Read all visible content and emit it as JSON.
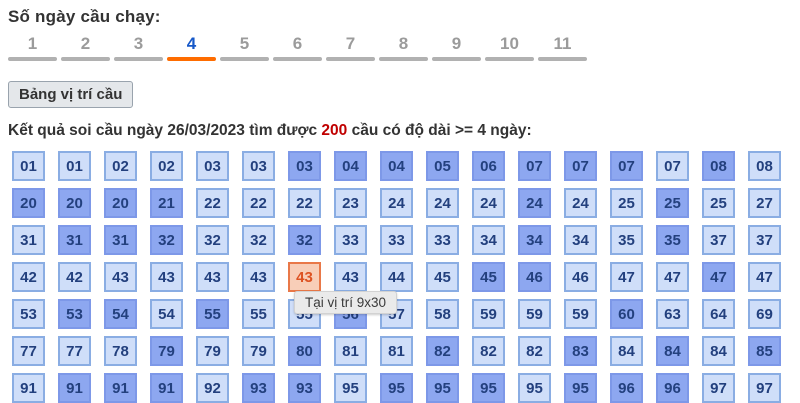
{
  "header": {
    "title": "Số ngày cầu chạy:"
  },
  "tabs": {
    "items": [
      "1",
      "2",
      "3",
      "4",
      "5",
      "6",
      "7",
      "8",
      "9",
      "10",
      "11"
    ],
    "active": "4"
  },
  "button": {
    "label": "Bảng vị trí cầu"
  },
  "result_line": {
    "prefix": "Kết quả soi cầu ngày 26/03/2023 tìm được ",
    "count": "200",
    "suffix": " cầu có độ dài >= 4 ngày:"
  },
  "tooltip": {
    "text": "Tại vị trí 9x30"
  },
  "colors": {
    "light_bg": "#cfdef9",
    "light_border": "#8aade3",
    "dark_bg": "#8da7f0",
    "dark_border": "#7d98e8",
    "cell_text": "#23407e",
    "hl_bg": "#f8ceb8",
    "hl_border": "#e97848",
    "hl_text": "#dd5222",
    "tab_gray": "#9b9b9b",
    "tab_bar": "#b1b1b1",
    "tab_active": "#1658c8",
    "tab_bar_active": "#fe6c00",
    "count_red": "#c00000",
    "ink": "#333333",
    "btn_bg": "#e4e7ea",
    "btn_border": "#99a3ad",
    "tip_bg": "#eaeaea",
    "tip_text": "#3a3a3a",
    "tip_border": "#d2d2d2"
  },
  "grid": {
    "rows": [
      [
        {
          "v": "01",
          "s": "l"
        },
        {
          "v": "01",
          "s": "l"
        },
        {
          "v": "02",
          "s": "l"
        },
        {
          "v": "02",
          "s": "l"
        },
        {
          "v": "03",
          "s": "l"
        },
        {
          "v": "03",
          "s": "l"
        },
        {
          "v": "03",
          "s": "d"
        },
        {
          "v": "04",
          "s": "d"
        },
        {
          "v": "04",
          "s": "d"
        },
        {
          "v": "05",
          "s": "d"
        },
        {
          "v": "06",
          "s": "d"
        },
        {
          "v": "07",
          "s": "d"
        },
        {
          "v": "07",
          "s": "d"
        },
        {
          "v": "07",
          "s": "d"
        },
        {
          "v": "07",
          "s": "l"
        },
        {
          "v": "08",
          "s": "d"
        },
        {
          "v": "08",
          "s": "l"
        }
      ],
      [
        {
          "v": "20",
          "s": "d"
        },
        {
          "v": "20",
          "s": "d"
        },
        {
          "v": "20",
          "s": "d"
        },
        {
          "v": "21",
          "s": "d"
        },
        {
          "v": "22",
          "s": "l"
        },
        {
          "v": "22",
          "s": "l"
        },
        {
          "v": "22",
          "s": "l"
        },
        {
          "v": "23",
          "s": "l"
        },
        {
          "v": "24",
          "s": "l"
        },
        {
          "v": "24",
          "s": "l"
        },
        {
          "v": "24",
          "s": "l"
        },
        {
          "v": "24",
          "s": "d"
        },
        {
          "v": "24",
          "s": "l"
        },
        {
          "v": "25",
          "s": "l"
        },
        {
          "v": "25",
          "s": "d"
        },
        {
          "v": "25",
          "s": "l"
        },
        {
          "v": "27",
          "s": "l"
        }
      ],
      [
        {
          "v": "31",
          "s": "l"
        },
        {
          "v": "31",
          "s": "d"
        },
        {
          "v": "31",
          "s": "d"
        },
        {
          "v": "32",
          "s": "d"
        },
        {
          "v": "32",
          "s": "l"
        },
        {
          "v": "32",
          "s": "l"
        },
        {
          "v": "32",
          "s": "d"
        },
        {
          "v": "33",
          "s": "l"
        },
        {
          "v": "33",
          "s": "l"
        },
        {
          "v": "33",
          "s": "l"
        },
        {
          "v": "34",
          "s": "l"
        },
        {
          "v": "34",
          "s": "d"
        },
        {
          "v": "34",
          "s": "l"
        },
        {
          "v": "35",
          "s": "l"
        },
        {
          "v": "35",
          "s": "d"
        },
        {
          "v": "37",
          "s": "l"
        },
        {
          "v": "37",
          "s": "l"
        }
      ],
      [
        {
          "v": "42",
          "s": "l"
        },
        {
          "v": "42",
          "s": "l"
        },
        {
          "v": "43",
          "s": "l"
        },
        {
          "v": "43",
          "s": "l"
        },
        {
          "v": "43",
          "s": "l"
        },
        {
          "v": "43",
          "s": "l"
        },
        {
          "v": "43",
          "s": "o"
        },
        {
          "v": "43",
          "s": "l"
        },
        {
          "v": "44",
          "s": "l"
        },
        {
          "v": "45",
          "s": "l"
        },
        {
          "v": "45",
          "s": "d"
        },
        {
          "v": "46",
          "s": "d"
        },
        {
          "v": "46",
          "s": "l"
        },
        {
          "v": "47",
          "s": "l"
        },
        {
          "v": "47",
          "s": "l"
        },
        {
          "v": "47",
          "s": "d"
        },
        {
          "v": "47",
          "s": "l"
        }
      ],
      [
        {
          "v": "53",
          "s": "l"
        },
        {
          "v": "53",
          "s": "d"
        },
        {
          "v": "54",
          "s": "d"
        },
        {
          "v": "54",
          "s": "l"
        },
        {
          "v": "55",
          "s": "d"
        },
        {
          "v": "55",
          "s": "l"
        },
        {
          "v": "55",
          "s": "l"
        },
        {
          "v": "56",
          "s": "d"
        },
        {
          "v": "57",
          "s": "l"
        },
        {
          "v": "58",
          "s": "l"
        },
        {
          "v": "59",
          "s": "l"
        },
        {
          "v": "59",
          "s": "l"
        },
        {
          "v": "59",
          "s": "l"
        },
        {
          "v": "60",
          "s": "d"
        },
        {
          "v": "63",
          "s": "l"
        },
        {
          "v": "64",
          "s": "l"
        },
        {
          "v": "69",
          "s": "l"
        }
      ],
      [
        {
          "v": "77",
          "s": "l"
        },
        {
          "v": "77",
          "s": "l"
        },
        {
          "v": "78",
          "s": "l"
        },
        {
          "v": "79",
          "s": "d"
        },
        {
          "v": "79",
          "s": "l"
        },
        {
          "v": "79",
          "s": "l"
        },
        {
          "v": "80",
          "s": "d"
        },
        {
          "v": "81",
          "s": "l"
        },
        {
          "v": "81",
          "s": "l"
        },
        {
          "v": "82",
          "s": "d"
        },
        {
          "v": "82",
          "s": "l"
        },
        {
          "v": "82",
          "s": "l"
        },
        {
          "v": "83",
          "s": "d"
        },
        {
          "v": "84",
          "s": "l"
        },
        {
          "v": "84",
          "s": "d"
        },
        {
          "v": "84",
          "s": "l"
        },
        {
          "v": "85",
          "s": "d"
        }
      ],
      [
        {
          "v": "91",
          "s": "l"
        },
        {
          "v": "91",
          "s": "d"
        },
        {
          "v": "91",
          "s": "d"
        },
        {
          "v": "91",
          "s": "d"
        },
        {
          "v": "92",
          "s": "l"
        },
        {
          "v": "93",
          "s": "d"
        },
        {
          "v": "93",
          "s": "d"
        },
        {
          "v": "95",
          "s": "l"
        },
        {
          "v": "95",
          "s": "d"
        },
        {
          "v": "95",
          "s": "d"
        },
        {
          "v": "95",
          "s": "d"
        },
        {
          "v": "95",
          "s": "l"
        },
        {
          "v": "95",
          "s": "d"
        },
        {
          "v": "96",
          "s": "d"
        },
        {
          "v": "96",
          "s": "d"
        },
        {
          "v": "97",
          "s": "l"
        },
        {
          "v": "97",
          "s": "l"
        }
      ]
    ]
  }
}
